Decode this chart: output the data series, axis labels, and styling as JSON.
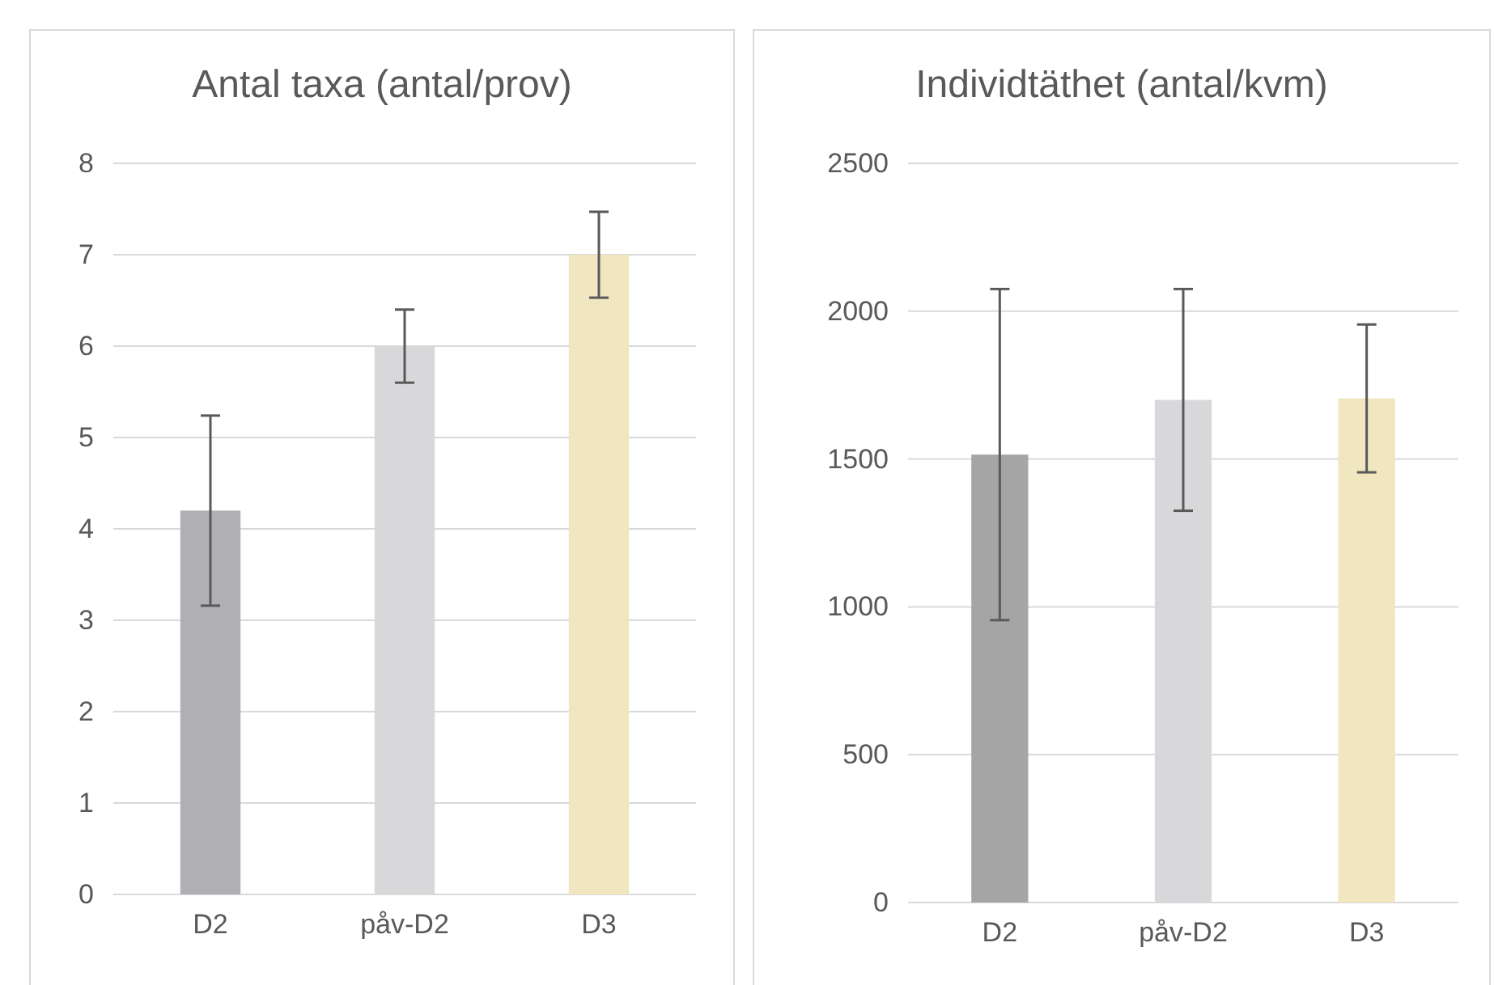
{
  "chart_data": [
    {
      "type": "bar",
      "title": "Antal taxa (antal/prov)",
      "categories": [
        "D2",
        "påv-D2",
        "D3"
      ],
      "values": [
        4.2,
        6,
        7
      ],
      "colors": [
        "#b0afb3",
        "#d8d8da",
        "#f0e7c0"
      ],
      "errors": [
        1.04,
        0.4,
        0.47
      ],
      "ylim": [
        0,
        8
      ],
      "yticks": [
        0,
        1,
        2,
        3,
        4,
        5,
        6,
        7,
        8
      ],
      "grid": "y"
    },
    {
      "type": "bar",
      "title": "Individtäthet  (antal/kvm)",
      "categories": [
        "D2",
        "påv-D2",
        "D3"
      ],
      "values": [
        1515,
        1700,
        1705
      ],
      "colors": [
        "#a5a5a6",
        "#d8d8da",
        "#f0e7c0"
      ],
      "errors": [
        560,
        375,
        250
      ],
      "ylim": [
        0,
        2500
      ],
      "yticks": [
        0,
        500,
        1000,
        1500,
        2000,
        2500
      ],
      "grid": "y"
    }
  ]
}
